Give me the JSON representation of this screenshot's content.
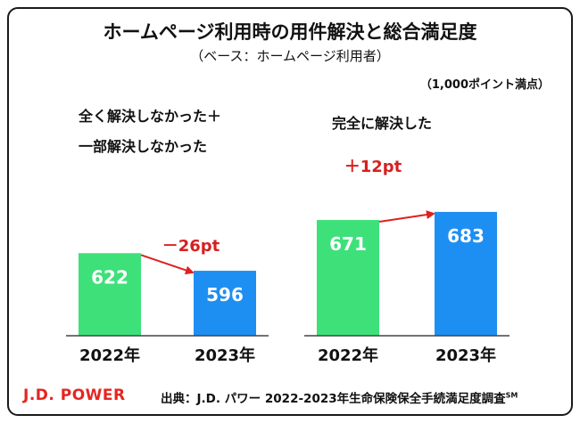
{
  "title": "ホームページ利用時の用件解決と総合満足度",
  "subtitle": "（ベース：ホームページ利用者）",
  "unit_note": "（1,000ポイント満点）",
  "brand": "J.D. POWER",
  "source": {
    "prefix": "出典：",
    "text": "J.D. パワー 2022-2023年生命保険保全手続満足度調査",
    "mark": "SM"
  },
  "colors": {
    "year2022": "#3ee07a",
    "year2023": "#1e8ff2",
    "arrow": "#e0211d",
    "change_text": "#d62020"
  },
  "chart_data": [
    {
      "type": "bar",
      "title": "全く解決しなかった＋一部解決しなかった",
      "title_lines": [
        "全く解決しなかった＋",
        "一部解決しなかった"
      ],
      "categories": [
        "2022年",
        "2023年"
      ],
      "values": [
        622,
        596
      ],
      "change_label": "－26pt",
      "ylim": [
        500,
        750
      ]
    },
    {
      "type": "bar",
      "title": "完全に解決した",
      "title_lines": [
        "完全に解決した"
      ],
      "categories": [
        "2022年",
        "2023年"
      ],
      "values": [
        671,
        683
      ],
      "change_label": "＋12pt",
      "ylim": [
        500,
        750
      ]
    }
  ]
}
